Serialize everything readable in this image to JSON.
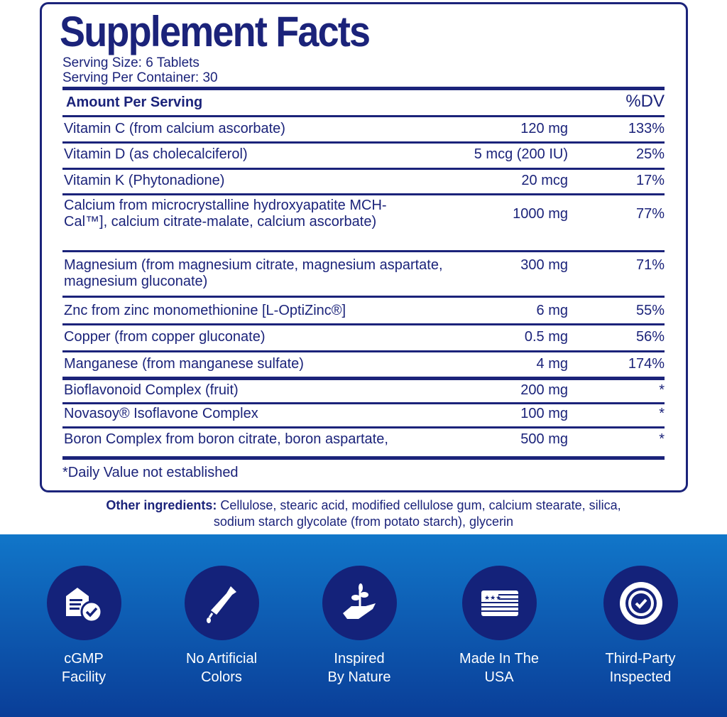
{
  "title": "Supplement Facts",
  "serving_size": "Serving Size: 6 Tablets",
  "servings_per_container": "Serving Per Container: 30",
  "header": {
    "amount": "Amount Per Serving",
    "dv": "%DV"
  },
  "rows": [
    {
      "name": "Vitamin C (from calcium ascorbate)",
      "amount": "120 mg",
      "dv": "133%"
    },
    {
      "name": "Vitamin D (as cholecalciferol)",
      "amount": "5 mcg (200 IU)",
      "dv": "25%"
    },
    {
      "name": "Vitamin K (Phytonadione)",
      "amount": "20 mcg",
      "dv": "17%"
    },
    {
      "name": "Calcium from microcrystalline hydroxyapatite MCH-Cal™], calcium citrate-malate, calcium ascorbate)",
      "amount": "1000 mg",
      "dv": "77%"
    },
    {
      "name": "Magnesium (from magnesium citrate, magnesium aspartate, magnesium gluconate)",
      "amount": "300 mg",
      "dv": "71%"
    },
    {
      "name": "Znc from zinc monomethionine [L-OptiZinc®]",
      "amount": "6 mg",
      "dv": "55%"
    },
    {
      "name": "Copper (from copper gluconate)",
      "amount": "0.5 mg",
      "dv": "56%"
    },
    {
      "name": "Manganese (from manganese sulfate)",
      "amount": "4 mg",
      "dv": "174%"
    },
    {
      "name": "Bioflavonoid Complex (fruit)",
      "amount": "200 mg",
      "dv": "*"
    },
    {
      "name": "Novasoy® Isoflavone Complex",
      "amount": "100 mg",
      "dv": "*"
    },
    {
      "name": "Boron Complex from boron citrate, boron aspartate,",
      "amount": "500 mg",
      "dv": "*"
    }
  ],
  "footnote": "*Daily Value not established",
  "other_ingredients": {
    "label": "Other ingredients:",
    "line1": "Cellulose, stearic acid, modified cellulose gum, calcium stearate, silica,",
    "line2": "sodium starch glycolate (from potato starch), glycerin"
  },
  "badges": [
    {
      "icon": "facility-check-icon",
      "line1": "cGMP",
      "line2": "Facility"
    },
    {
      "icon": "dropper-icon",
      "line1": "No Artificial",
      "line2": "Colors"
    },
    {
      "icon": "hand-sprout-icon",
      "line1": "Inspired",
      "line2": "By Nature"
    },
    {
      "icon": "usa-flag-icon",
      "line1": "Made In The",
      "line2": "USA"
    },
    {
      "icon": "seal-check-icon",
      "line1": "Third-Party",
      "line2": "Inspected"
    }
  ],
  "colors": {
    "navy": "#1b237a",
    "band_top": "#1176c9",
    "band_bottom": "#0a3e98"
  }
}
